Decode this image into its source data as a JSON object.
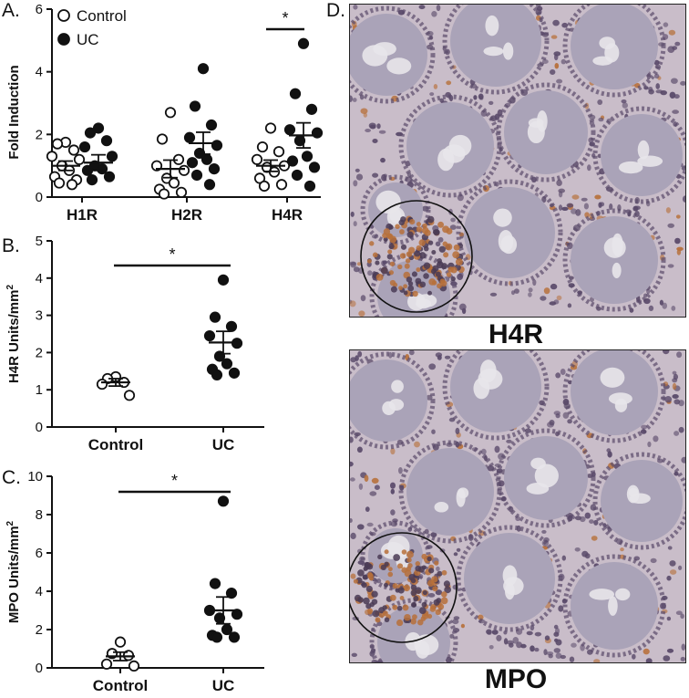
{
  "panels": {
    "a": "A.",
    "b": "B.",
    "c": "C.",
    "d": "D."
  },
  "chart_data": [
    {
      "id": "A",
      "type": "scatter",
      "title": "",
      "ylabel": "Fold Induction",
      "xlabel": "",
      "ylim": [
        0,
        6
      ],
      "yticks": [
        0,
        2,
        4,
        6
      ],
      "categories": [
        "H1R",
        "H2R",
        "H4R"
      ],
      "legend": {
        "placement": "top-left",
        "entries": [
          "Control",
          "UC"
        ]
      },
      "series": [
        {
          "name": "Control",
          "marker": "open-circle",
          "groups": [
            [
              1.75,
              1.7,
              1.5,
              1.3,
              1.2,
              1.0,
              0.85,
              0.65,
              0.55,
              0.45,
              0.4
            ],
            [
              2.7,
              1.85,
              1.2,
              1.0,
              0.85,
              0.6,
              0.45,
              0.25,
              0.15,
              0.1
            ],
            [
              2.2,
              1.6,
              1.45,
              1.2,
              1.0,
              0.95,
              0.8,
              0.6,
              0.4,
              0.35
            ]
          ],
          "means": [
            1.0,
            0.9,
            1.0
          ],
          "sem": [
            0.15,
            0.28,
            0.18
          ]
        },
        {
          "name": "UC",
          "marker": "filled-circle",
          "groups": [
            [
              2.2,
              2.05,
              1.8,
              1.6,
              1.3,
              1.0,
              0.9,
              0.85,
              0.65,
              0.55
            ],
            [
              4.1,
              2.9,
              2.3,
              1.9,
              1.65,
              1.4,
              1.2,
              1.1,
              0.9,
              0.7,
              0.4
            ],
            [
              4.9,
              3.3,
              2.8,
              2.15,
              2.05,
              1.8,
              1.3,
              1.15,
              0.95,
              0.7,
              0.35
            ]
          ],
          "means": [
            1.1,
            1.72,
            1.97
          ],
          "sem": [
            0.25,
            0.35,
            0.4
          ]
        }
      ],
      "annotations": [
        {
          "text": "*",
          "between": "H4R Control vs UC"
        }
      ]
    },
    {
      "id": "B",
      "type": "scatter",
      "title": "",
      "ylabel": "H4R Units/mm²",
      "xlabel": "",
      "ylim": [
        0,
        5
      ],
      "yticks": [
        0,
        1,
        2,
        3,
        4,
        5
      ],
      "categories": [
        "Control",
        "UC"
      ],
      "series": [
        {
          "name": "Control",
          "marker": "open-circle",
          "values": [
            1.35,
            1.3,
            1.2,
            1.15,
            0.85
          ],
          "mean": 1.2,
          "sem": 0.1
        },
        {
          "name": "UC",
          "marker": "filled-circle",
          "values": [
            3.95,
            2.95,
            2.7,
            2.45,
            2.25,
            1.9,
            1.7,
            1.55,
            1.45,
            1.4
          ],
          "mean": 2.27,
          "sem": 0.3
        }
      ],
      "annotations": [
        {
          "text": "*",
          "between": "Control vs UC"
        }
      ]
    },
    {
      "id": "C",
      "type": "scatter",
      "title": "",
      "ylabel": "MPO Units/mm²",
      "xlabel": "",
      "ylim": [
        0,
        10
      ],
      "yticks": [
        0,
        2,
        4,
        6,
        8,
        10
      ],
      "categories": [
        "Control",
        "UC"
      ],
      "series": [
        {
          "name": "Control",
          "marker": "open-circle",
          "values": [
            1.35,
            0.75,
            0.65,
            0.2,
            0.1
          ],
          "mean": 0.6,
          "sem": 0.22
        },
        {
          "name": "UC",
          "marker": "filled-circle",
          "values": [
            8.7,
            4.4,
            3.9,
            3.0,
            2.8,
            2.6,
            2.0,
            1.7,
            1.6,
            1.6
          ],
          "mean": 3.0,
          "sem": 0.7
        }
      ],
      "annotations": [
        {
          "text": "*",
          "between": "Control vs UC"
        }
      ]
    }
  ],
  "micrographs": [
    {
      "id": "h4r",
      "label": "H4R",
      "icon": "circle-annotation-icon"
    },
    {
      "id": "mpo",
      "label": "MPO",
      "icon": "circle-annotation-icon"
    }
  ],
  "colors": {
    "ink": "#111111",
    "tissue": "#c9bdc9",
    "crypt": "#aaa3b8",
    "lumen": "#e8e6ea",
    "nucleus": "#5a4a6a",
    "stain": "#b7703a"
  }
}
